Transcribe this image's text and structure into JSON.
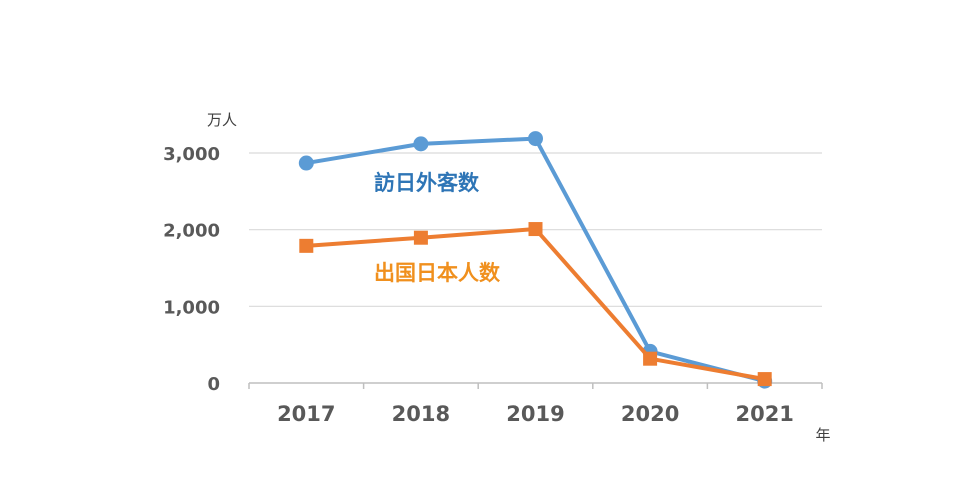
{
  "chart_data": {
    "type": "line",
    "title": "",
    "ylabel": "万人",
    "xlabel": "年",
    "ylim": [
      0,
      3000
    ],
    "yticks": [
      {
        "value": 0,
        "label": "0"
      },
      {
        "value": 1000,
        "label": "1,000"
      },
      {
        "value": 2000,
        "label": "2,000"
      },
      {
        "value": 3000,
        "label": "3,000"
      }
    ],
    "categories": [
      "2017",
      "2018",
      "2019",
      "2020",
      "2021"
    ],
    "grid": true,
    "legend": "inline labels beside lines",
    "series": [
      {
        "name": "訪日外客数",
        "color": "#5b9bd5",
        "label_color": "#2e75b6",
        "marker": "circle",
        "values": [
          2869,
          3119,
          3188,
          412,
          25
        ]
      },
      {
        "name": "出国日本人数",
        "color": "#ed7d31",
        "label_color": "#f0901e",
        "marker": "square",
        "values": [
          1789,
          1895,
          2008,
          317,
          51
        ]
      }
    ]
  }
}
